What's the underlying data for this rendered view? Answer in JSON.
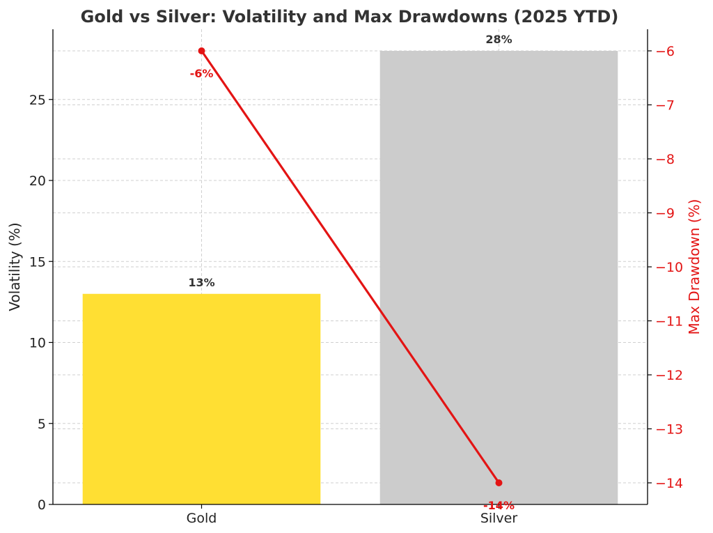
{
  "chart_data": {
    "type": "bar",
    "title": "Gold vs Silver: Volatility and Max Drawdowns (2025 YTD)",
    "categories": [
      "Gold",
      "Silver"
    ],
    "series": [
      {
        "axis": "left",
        "kind": "bar",
        "values": [
          13,
          28
        ],
        "colors": [
          "#FFDF33",
          "#CCCCCC"
        ],
        "data_labels": [
          "13%",
          "28%"
        ]
      },
      {
        "axis": "right",
        "kind": "line",
        "values": [
          -6,
          -14
        ],
        "color": "#E31414",
        "data_labels": [
          "-6%",
          "-14%"
        ]
      }
    ],
    "y_left": {
      "label": "Volatility (%)",
      "ticks": [
        0,
        5,
        10,
        15,
        20,
        25
      ],
      "ylim": [
        0,
        28
      ]
    },
    "y_right": {
      "label": "Max Drawdown (%)",
      "ticks": [
        -6,
        -7,
        -8,
        -9,
        -10,
        -11,
        -12,
        -13,
        -14
      ],
      "tick_labels": [
        "−6",
        "−7",
        "−8",
        "−9",
        "−10",
        "−11",
        "−12",
        "−13",
        "−14"
      ],
      "ylim": [
        -14.4,
        -5.6
      ],
      "color": "#E31414"
    },
    "grid": true,
    "legend": "none"
  }
}
